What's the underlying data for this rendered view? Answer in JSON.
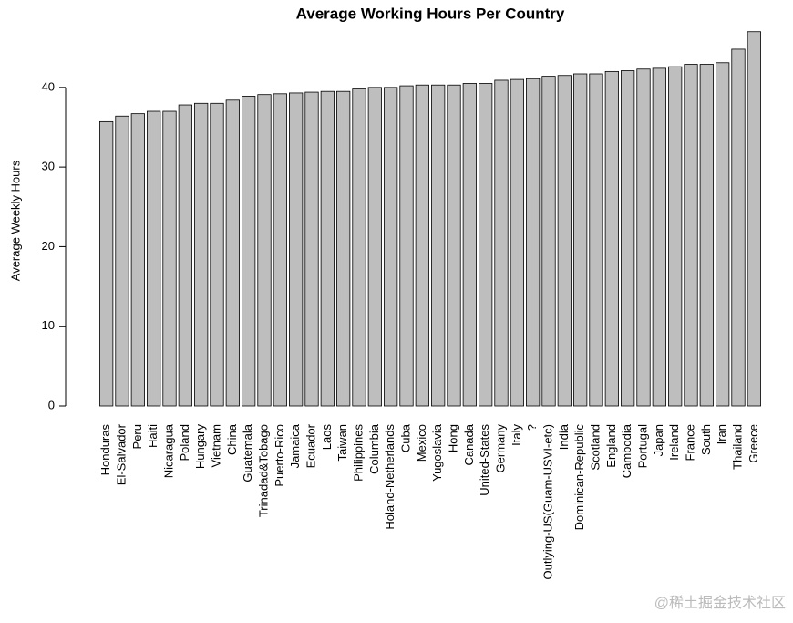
{
  "chart_data": {
    "type": "bar",
    "title": "Average Working Hours Per Country",
    "y_label": "Average Weekly Hours",
    "categories": [
      "Honduras",
      "El-Salvador",
      "Peru",
      "Haiti",
      "Nicaragua",
      "Poland",
      "Hungary",
      "Vietnam",
      "China",
      "Guatemala",
      "Trinadad&Tobago",
      "Puerto-Rico",
      "Jamaica",
      "Ecuador",
      "Laos",
      "Taiwan",
      "Philippines",
      "Columbia",
      "Holand-Netherlands",
      "Cuba",
      "Mexico",
      "Yugoslavia",
      "Hong",
      "Canada",
      "United-States",
      "Germany",
      "Italy",
      "?",
      "Outlying-US(Guam-USVI-etc)",
      "India",
      "Dominican-Republic",
      "Scotland",
      "England",
      "Cambodia",
      "Portugal",
      "Japan",
      "Ireland",
      "France",
      "South",
      "Iran",
      "Thailand",
      "Greece"
    ],
    "values": [
      35.7,
      36.4,
      36.7,
      37.0,
      37.0,
      37.8,
      38.0,
      38.0,
      38.4,
      38.9,
      39.1,
      39.2,
      39.3,
      39.4,
      39.5,
      39.5,
      39.8,
      40.0,
      40.0,
      40.2,
      40.3,
      40.3,
      40.3,
      40.5,
      40.5,
      40.9,
      41.0,
      41.1,
      41.4,
      41.5,
      41.7,
      41.7,
      42.0,
      42.1,
      42.3,
      42.4,
      42.6,
      42.9,
      42.9,
      43.1,
      44.8,
      47.0
    ],
    "color": "#bebebe",
    "ylim": [
      0,
      48
    ],
    "yticks": [
      0,
      10,
      20,
      30,
      40
    ]
  },
  "watermark": "@稀土掘金技术社区"
}
